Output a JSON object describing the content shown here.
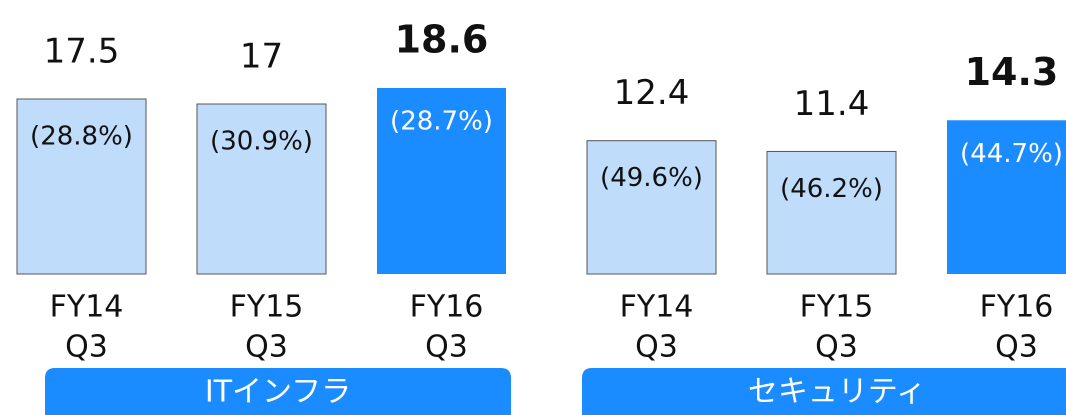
{
  "chart_data": [
    {
      "type": "bar",
      "title": "ITインフラ",
      "categories": [
        [
          "FY14",
          "Q3"
        ],
        [
          "FY15",
          "Q3"
        ],
        [
          "FY16",
          "Q3"
        ]
      ],
      "values": [
        17.5,
        17.0,
        18.6
      ],
      "share_labels": [
        "(28.8%)",
        "(30.9%)",
        "(28.7%)"
      ],
      "colors": [
        "#bfdcfb",
        "#bfdcfb",
        "#1a8cff"
      ],
      "bold": [
        false,
        false,
        true
      ]
    },
    {
      "type": "bar",
      "title": "セキュリティ",
      "categories": [
        [
          "FY14",
          "Q3"
        ],
        [
          "FY15",
          "Q3"
        ],
        [
          "FY16",
          "Q3"
        ]
      ],
      "values": [
        12.4,
        11.4,
        14.3
      ],
      "share_labels": [
        "(49.6%)",
        "(46.2%)",
        "(44.7%)"
      ],
      "colors": [
        "#bfdcfb",
        "#bfdcfb",
        "#1a8cff"
      ],
      "bold": [
        false,
        false,
        true
      ]
    }
  ]
}
